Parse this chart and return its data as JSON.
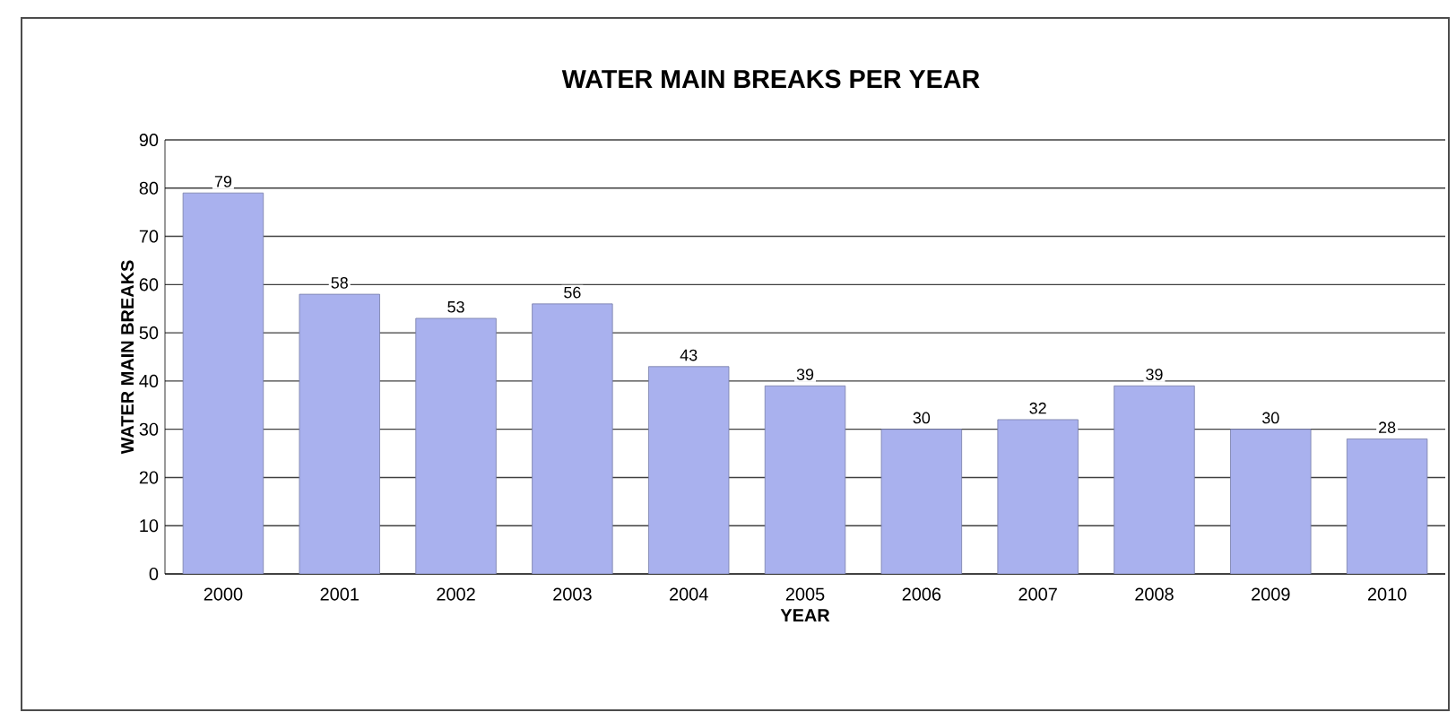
{
  "chart_data": {
    "type": "bar",
    "title": "WATER MAIN BREAKS PER YEAR",
    "xlabel": "YEAR",
    "ylabel": "WATER MAIN BREAKS",
    "categories": [
      "2000",
      "2001",
      "2002",
      "2003",
      "2004",
      "2005",
      "2006",
      "2007",
      "2008",
      "2009",
      "2010"
    ],
    "values": [
      79,
      58,
      53,
      56,
      43,
      39,
      30,
      32,
      39,
      30,
      28
    ],
    "color": "#a9b1ee",
    "ylim": [
      0,
      90
    ],
    "yticks": [
      0,
      10,
      20,
      30,
      40,
      50,
      60,
      70,
      80,
      90
    ],
    "grid": "y",
    "data_labels": true
  }
}
